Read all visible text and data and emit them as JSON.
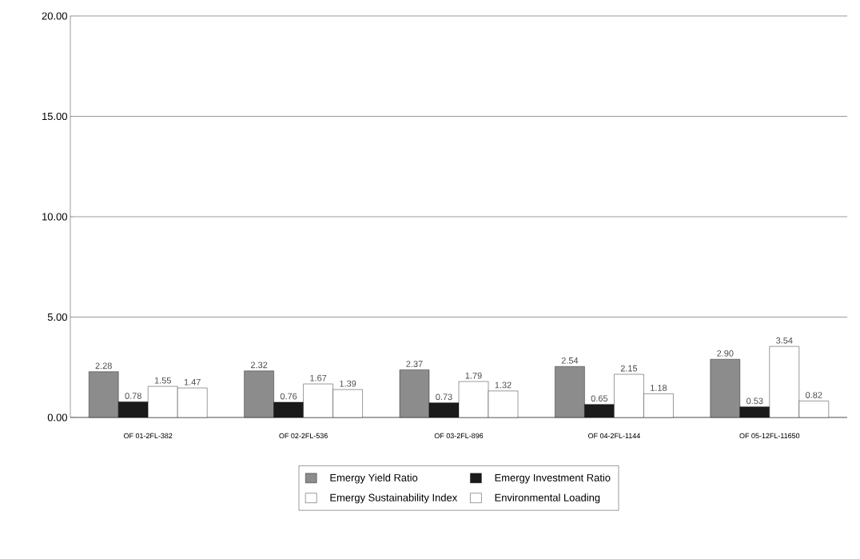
{
  "chart_data": {
    "type": "bar",
    "categories": [
      "OF 01-2FL-382",
      "OF 02-2FL-536",
      "OF 03-2FL-896",
      "OF 04-2FL-1144",
      "OF 05-12FL-11650"
    ],
    "series": [
      {
        "name": "Emergy Yield Ratio",
        "color": "#8c8c8c",
        "values": [
          2.28,
          2.32,
          2.37,
          2.54,
          2.9
        ],
        "value_labels": [
          "2.28",
          "2.32",
          "2.37",
          "2.54",
          "2.90"
        ]
      },
      {
        "name": "Emergy Investment Ratio",
        "color": "#1a1a1a",
        "values": [
          0.78,
          0.76,
          0.73,
          0.65,
          0.53
        ],
        "value_labels": [
          "0.78",
          "0.76",
          "0.73",
          "0.65",
          "0.53"
        ]
      },
      {
        "name": "Emergy Sustainability Index",
        "color": "#ffffff",
        "values": [
          1.55,
          1.67,
          1.79,
          2.15,
          3.54
        ],
        "value_labels": [
          "1.55",
          "1.67",
          "1.79",
          "2.15",
          "3.54"
        ]
      },
      {
        "name": "Environmental Loading",
        "color": "#ffffff",
        "values": [
          1.47,
          1.39,
          1.32,
          1.18,
          0.82
        ],
        "value_labels": [
          "1.47",
          "1.39",
          "1.32",
          "1.18",
          "0.82"
        ]
      }
    ],
    "ylim": [
      0,
      20
    ],
    "yticks": [
      {
        "value": 0,
        "label": "0.00"
      },
      {
        "value": 5,
        "label": "5.00"
      },
      {
        "value": 10,
        "label": "10.00"
      },
      {
        "value": 15,
        "label": "15.00"
      },
      {
        "value": 20,
        "label": "20.00"
      }
    ],
    "grid": "y",
    "legend": "bottom"
  }
}
